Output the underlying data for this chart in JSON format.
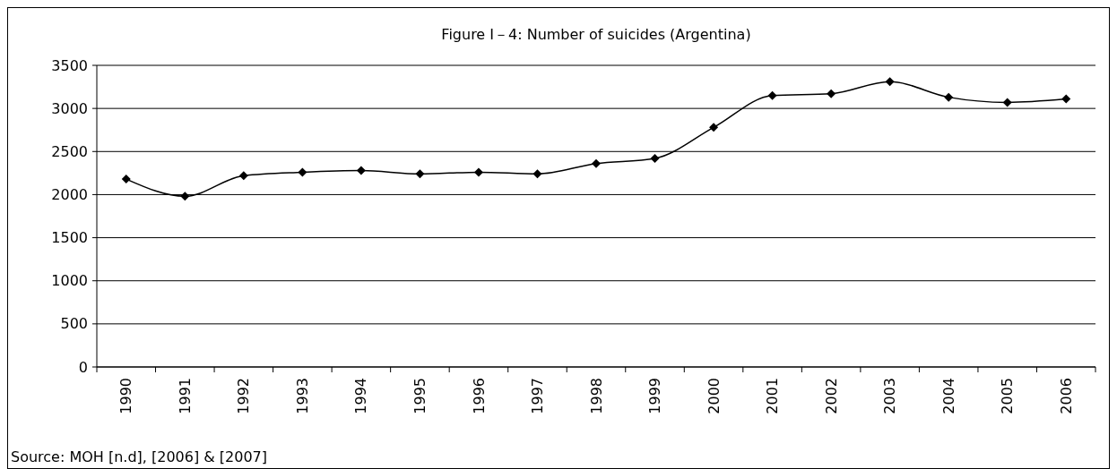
{
  "chart_data": {
    "type": "line",
    "title": "Figure I－4: Number of suicides (Argentina)",
    "categories": [
      "1990",
      "1991",
      "1992",
      "1993",
      "1994",
      "1995",
      "1996",
      "1997",
      "1998",
      "1999",
      "2000",
      "2001",
      "2002",
      "2003",
      "2004",
      "2005",
      "2006"
    ],
    "series": [
      {
        "color": "#000000",
        "values": [
          2180,
          1980,
          2220,
          2260,
          2280,
          2240,
          2260,
          2240,
          2360,
          2420,
          2780,
          3150,
          3170,
          3310,
          3130,
          3070,
          3110
        ]
      }
    ],
    "ylim": [
      0,
      3500
    ],
    "yticks": [
      0,
      500,
      1000,
      1500,
      2000,
      2500,
      3000,
      3500
    ],
    "grid": "y",
    "marker": "diamond",
    "line_style": "solid",
    "annotations": [
      "Source: MOH [n.d], [2006] & [2007]"
    ]
  }
}
